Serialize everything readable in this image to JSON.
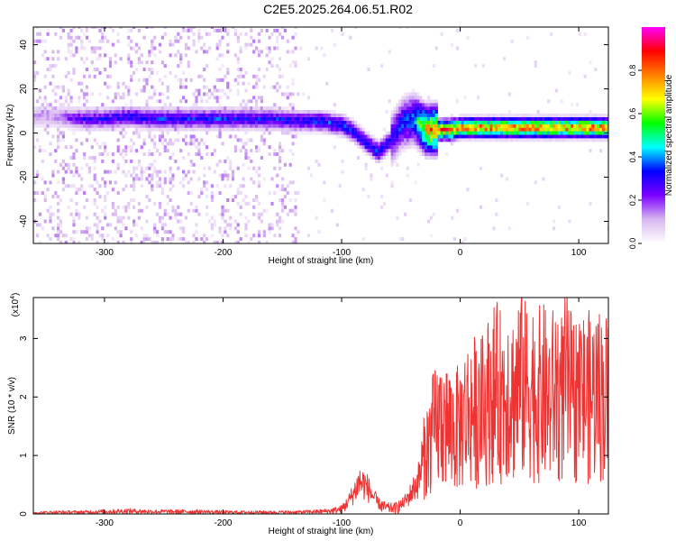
{
  "figure_title": "C2E5.2025.264.06.51.R02",
  "chart_data": [
    {
      "type": "heatmap",
      "title": "C2E5.2025.264.06.51.R02",
      "xlabel": "Height of straight line (km)",
      "ylabel": "Frequency (Hz)",
      "xlim": [
        -360,
        125
      ],
      "ylim": [
        -50,
        48
      ],
      "xticks": [
        -300,
        -200,
        -100,
        0,
        100
      ],
      "yticks": [
        -40,
        -20,
        0,
        20,
        40
      ],
      "xtick_labels": [
        "-300",
        "-200",
        "-100",
        "0",
        "100"
      ],
      "ytick_labels": [
        "-40",
        "-20",
        "0",
        "20",
        "40"
      ],
      "colorbar": {
        "label": "Normalized spectral amplitude",
        "range": [
          0,
          1
        ],
        "ticks": [
          0.0,
          0.2,
          0.4,
          0.6,
          0.8
        ],
        "tick_labels": [
          "0.0",
          "0.2",
          "0.4",
          "0.6",
          "0.8"
        ],
        "colors": [
          "#ffffff",
          "#d8b8f0",
          "#7b00ff",
          "#0000ff",
          "#00ffff",
          "#00ff00",
          "#ffff00",
          "#ff8000",
          "#ff0000",
          "#ff00ff"
        ]
      },
      "ridge": {
        "height_km": [
          -345,
          -320,
          -300,
          -280,
          -260,
          -240,
          -220,
          -200,
          -180,
          -160,
          -140,
          -120,
          -100,
          -90,
          -80,
          -70,
          -60,
          -50,
          -40,
          -30,
          -20,
          -10,
          0,
          20,
          40,
          60,
          80,
          100,
          124
        ],
        "frequency_hz": [
          7,
          6,
          6,
          7,
          6,
          6,
          6,
          6,
          6,
          6,
          5,
          5,
          3,
          0,
          -5,
          -9,
          -4,
          4,
          6,
          1,
          1,
          1,
          2,
          2,
          2,
          2,
          2,
          2,
          2
        ],
        "amplitude": [
          0.15,
          0.3,
          0.32,
          0.35,
          0.35,
          0.36,
          0.36,
          0.36,
          0.35,
          0.35,
          0.35,
          0.38,
          0.4,
          0.4,
          0.38,
          0.4,
          0.35,
          0.4,
          0.45,
          0.8,
          0.9,
          0.9,
          0.85,
          0.9,
          0.9,
          0.9,
          0.9,
          0.9,
          0.9
        ]
      }
    },
    {
      "type": "line",
      "xlabel": "Height of straight line (km)",
      "ylabel": "SNR (10 * v/v)",
      "ymultiplier": "(x10",
      "ymultiplier_exp": "4",
      "ymultiplier_close": ")",
      "xlim": [
        -360,
        125
      ],
      "ylim": [
        0,
        3.7
      ],
      "xticks": [
        -300,
        -200,
        -100,
        0,
        100
      ],
      "yticks": [
        0,
        1,
        2,
        3
      ],
      "xtick_labels": [
        "-300",
        "-200",
        "-100",
        "0",
        "100"
      ],
      "ytick_labels": [
        "0",
        "1",
        "2",
        "3"
      ],
      "series": [
        {
          "name": "SNR",
          "color": "#ee3333",
          "x": [
            -360,
            -340,
            -320,
            -300,
            -280,
            -260,
            -240,
            -220,
            -200,
            -180,
            -160,
            -140,
            -120,
            -110,
            -100,
            -95,
            -90,
            -85,
            -80,
            -75,
            -70,
            -65,
            -60,
            -55,
            -50,
            -45,
            -40,
            -35,
            -30,
            -25,
            -20,
            -15,
            -10,
            -5,
            0,
            5,
            10,
            15,
            20,
            25,
            30,
            35,
            40,
            45,
            50,
            55,
            60,
            65,
            70,
            75,
            80,
            85,
            90,
            95,
            100,
            105,
            110,
            115,
            120,
            124
          ],
          "y": [
            0.02,
            0.03,
            0.03,
            0.04,
            0.05,
            0.04,
            0.04,
            0.04,
            0.03,
            0.03,
            0.03,
            0.03,
            0.04,
            0.05,
            0.08,
            0.2,
            0.35,
            0.55,
            0.5,
            0.35,
            0.2,
            0.12,
            0.1,
            0.1,
            0.15,
            0.25,
            0.4,
            0.6,
            1.0,
            1.3,
            1.5,
            1.6,
            1.5,
            1.4,
            1.5,
            1.7,
            1.8,
            1.7,
            1.8,
            2.0,
            2.1,
            2.0,
            2.2,
            2.0,
            2.3,
            2.1,
            2.2,
            2.0,
            2.1,
            1.9,
            2.1,
            2.0,
            2.2,
            1.9,
            2.1,
            2.0,
            2.0,
            2.1,
            2.0,
            2.0
          ]
        }
      ]
    }
  ]
}
